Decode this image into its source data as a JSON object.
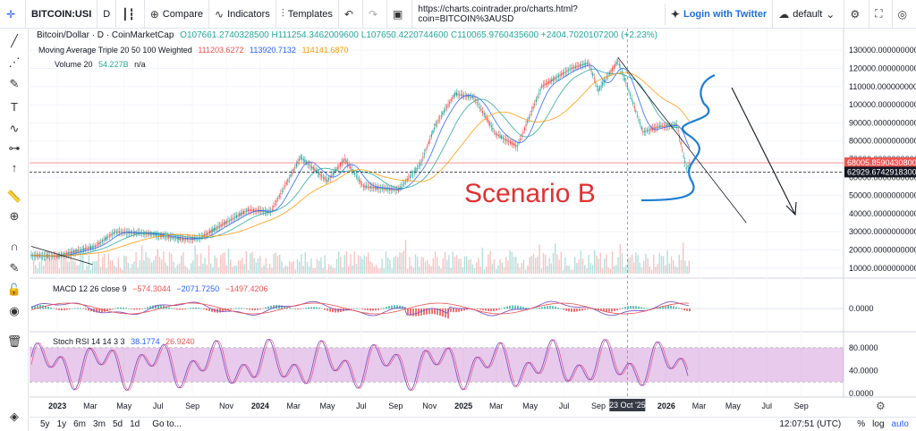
{
  "toolbar": {
    "symbol": "BITCOIN:USI",
    "interval": "D",
    "compare": "Compare",
    "indicators": "Indicators",
    "templates": "Templates",
    "url": "https://charts.cointrader.pro/charts.html?coin=BITCOIN%3AUSD",
    "twitter": "Login with Twitter",
    "layout_name": "default",
    "icons": [
      "bar-type-icon",
      "plus-circle-icon",
      "indicators-icon",
      "templates-icon",
      "undo-icon",
      "redo-icon",
      "screenshot-icon",
      "twitter-icon",
      "cloud-icon",
      "gear-icon",
      "fullscreen-icon",
      "snapshot-icon"
    ]
  },
  "legend": {
    "title": "Bitcoin/Dollar · D · CoinMarketCap",
    "ohlc": "O107661.2740328500 H111254.3462009600 L107650.4220744600 C110065.9760435600 +2404.7020107200 (+2.23%)",
    "ma_label": "Moving Average Triple 20 50 100 Weighted",
    "ma1": "111203.6272",
    "ma2": "113920.7132",
    "ma3": "114141.6870",
    "volume_label": "Volume 20",
    "volume_val": "54.227B",
    "volume_na": "n/a",
    "macd_label": "MACD 12 26 close 9",
    "macd_v1": "−574.3044",
    "macd_v2": "−2071.7250",
    "macd_v3": "−1497.4206",
    "stoch_label": "Stoch RSI 14 14 3 3",
    "stoch_v1": "38.1774",
    "stoch_v2": "26.9240"
  },
  "annotation": {
    "text": "Scenario B",
    "color": "#e03131"
  },
  "crosshair_label": "23 Oct '25",
  "bottom": {
    "ranges": [
      "5y",
      "1y",
      "6m",
      "3m",
      "5d",
      "1d"
    ],
    "goto": "Go to...",
    "time": "12:07:51 (UTC)",
    "pct": "%",
    "log": "log",
    "auto": "auto"
  },
  "chart_data": [
    {
      "type": "line",
      "title": "Bitcoin/Dollar",
      "x_labels": [
        "2023",
        "Mar",
        "May",
        "Jul",
        "Sep",
        "Nov",
        "2024",
        "Mar",
        "May",
        "Jul",
        "Sep",
        "Nov",
        "2025",
        "Mar",
        "May",
        "Jul",
        "Sep",
        "Nov",
        "2026",
        "Mar",
        "May",
        "Jul",
        "Sep"
      ],
      "y_ticks": [
        "130000.0000000000",
        "120000.0000000000",
        "110000.0000000000",
        "100000.0000000000",
        "90000.0000000000",
        "80000.0000000000",
        "70000.0000000000",
        "60000.0000000000",
        "50000.0000000000",
        "40000.0000000000",
        "30000.0000000000",
        "20000.0000000000",
        "10000.0000000000"
      ],
      "ylim": [
        5000,
        135000
      ],
      "price_labels": [
        {
          "value": 68005.85904308,
          "text": "68005.8590430800",
          "color": "#ef5350"
        },
        {
          "value": 62929.67429183,
          "text": "62929.6742918300",
          "color": "#131722"
        }
      ],
      "series": [
        {
          "name": "Bitcoin/Dollar",
          "x": [
            "2022-11-15",
            "2022-12-31",
            "2023-03-10",
            "2023-04-15",
            "2023-06-15",
            "2023-08-15",
            "2023-09-15",
            "2023-10-25",
            "2023-12-10",
            "2024-01-20",
            "2024-03-14",
            "2024-05-01",
            "2024-06-01",
            "2024-07-05",
            "2024-08-05",
            "2024-09-06",
            "2024-10-15",
            "2024-11-12",
            "2024-12-17",
            "2025-01-20",
            "2025-02-28",
            "2025-04-08",
            "2025-05-22",
            "2025-07-14",
            "2025-08-14",
            "2025-09-01",
            "2025-10-06",
            "2025-10-23",
            "2025-11-20",
            "2025-12-20",
            "2026-01-20",
            "2026-02-06",
            "2026-02-12"
          ],
          "values": [
            17000,
            16500,
            22000,
            30000,
            29000,
            26000,
            26500,
            34000,
            42000,
            41000,
            71000,
            58000,
            70000,
            55000,
            54000,
            53000,
            67000,
            89000,
            106000,
            104000,
            84000,
            77000,
            110000,
            120000,
            123000,
            108000,
            124000,
            110000,
            85000,
            88000,
            89000,
            65000,
            67000
          ]
        },
        {
          "name": "MA 20",
          "color": "#2962ff",
          "values": []
        },
        {
          "name": "MA 50",
          "color": "#26a69a",
          "values": []
        },
        {
          "name": "MA 100",
          "color": "#ff9800",
          "values": []
        }
      ]
    },
    {
      "type": "bar",
      "title": "Volume",
      "series": [
        {
          "name": "Volume",
          "values": []
        }
      ]
    },
    {
      "type": "line",
      "title": "MACD 12 26 close 9",
      "y_ticks": [
        "0.0000"
      ]
    },
    {
      "type": "line",
      "title": "Stoch RSI 14 14 3 3",
      "y_ticks": [
        "80.0000",
        "40.0000",
        "0.0000"
      ],
      "ylim": [
        0,
        100
      ]
    }
  ]
}
